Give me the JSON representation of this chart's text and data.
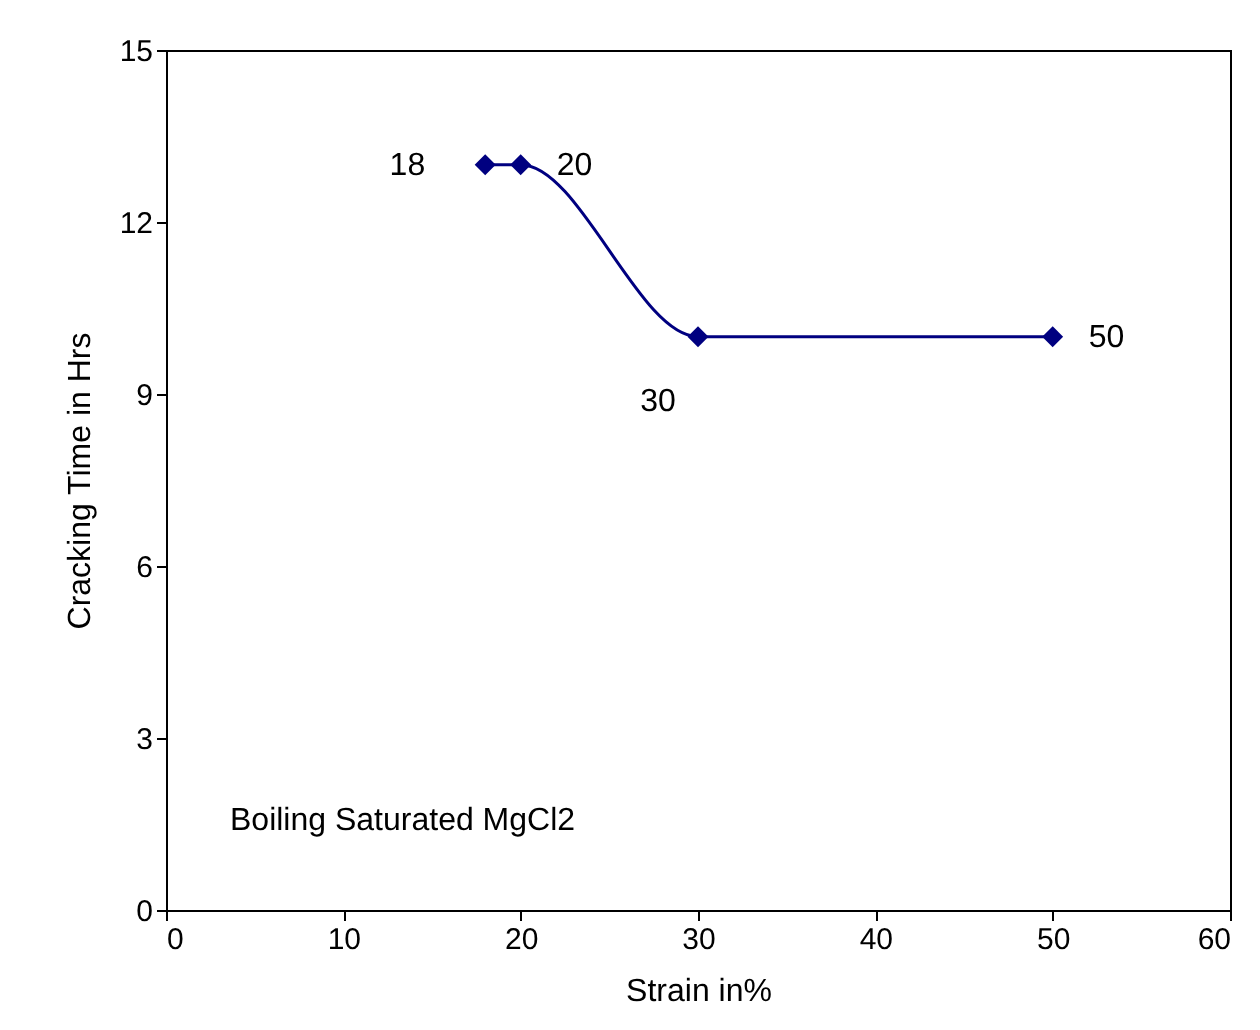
{
  "chart_data": {
    "type": "line",
    "xlabel": "Strain in%",
    "ylabel": "Cracking Time in Hrs",
    "x": [
      18,
      20,
      30,
      50
    ],
    "series": [
      {
        "color": "#000080",
        "values": [
          13,
          13,
          10,
          10
        ]
      }
    ],
    "xlim": [
      0,
      60
    ],
    "xticks": [
      0,
      10,
      20,
      30,
      40,
      50,
      60
    ],
    "ylim": [
      0,
      15
    ],
    "yticks": [
      0,
      3,
      6,
      9,
      12,
      15
    ],
    "marker": "diamond",
    "grid": false,
    "annotations": [
      {
        "text": "18",
        "x": 18,
        "y": 13
      },
      {
        "text": "20",
        "x": 20,
        "y": 13
      },
      {
        "text": "30",
        "x": 30,
        "y": 10
      },
      {
        "text": "50",
        "x": 50,
        "y": 10
      },
      "Boiling Saturated MgCl2"
    ]
  }
}
